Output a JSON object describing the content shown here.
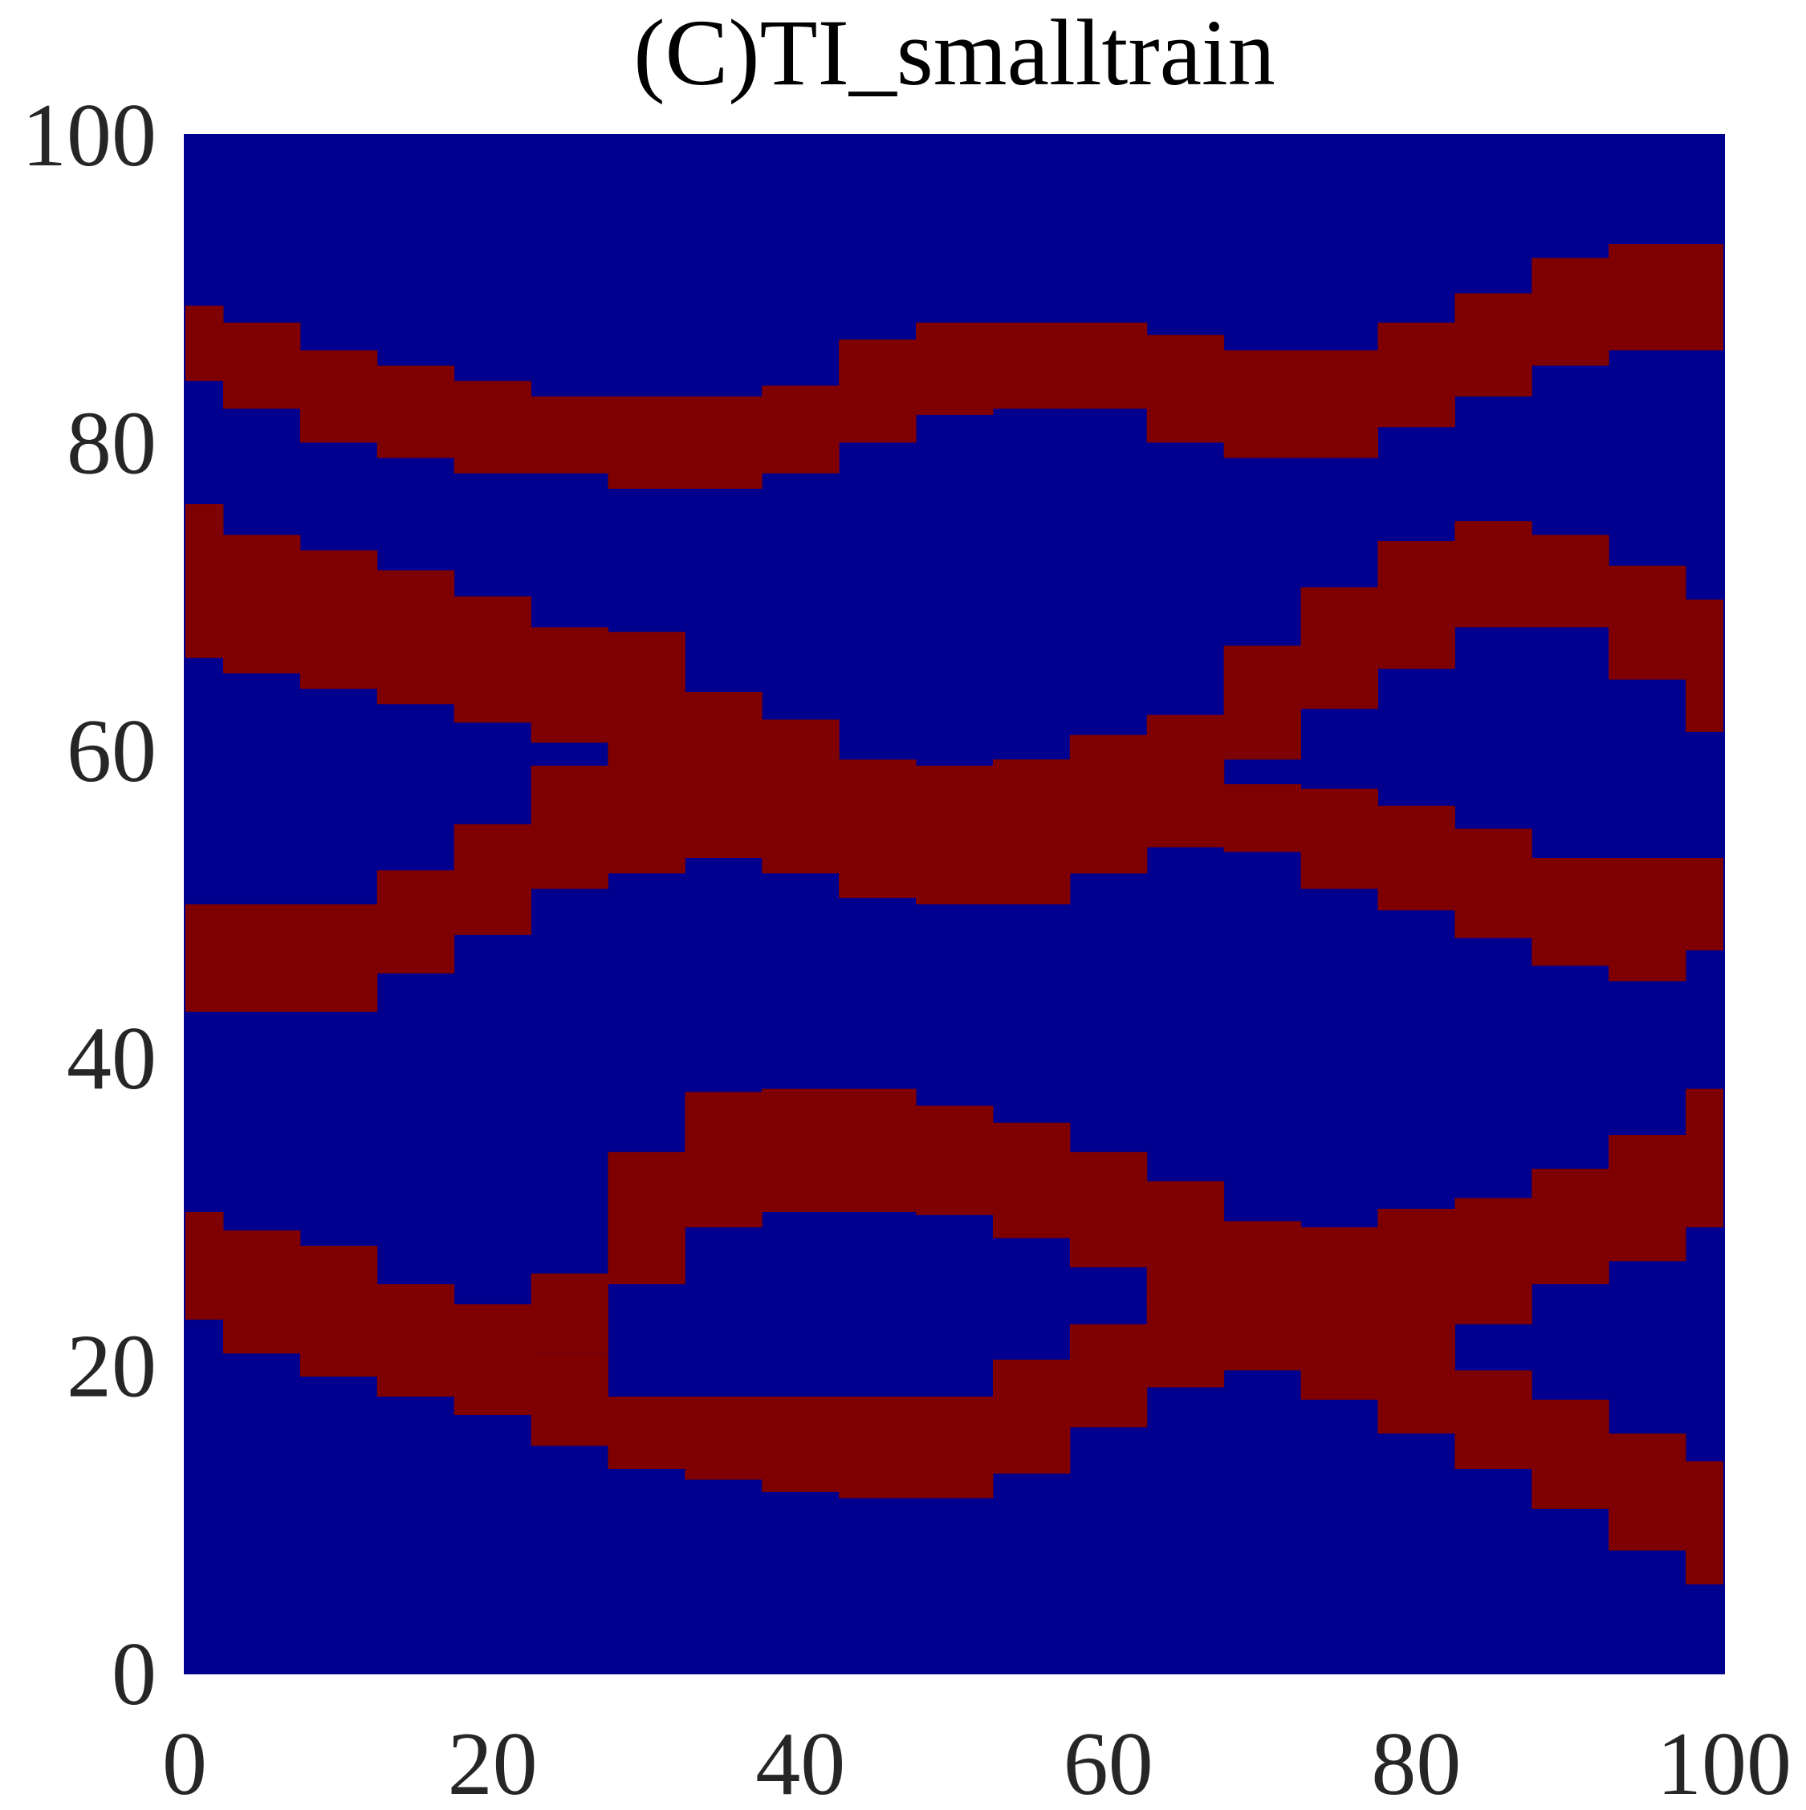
{
  "chart_data": {
    "type": "channels",
    "title": "(C)TI_smalltrain",
    "background": "#00008f",
    "color": "#7f0000",
    "xlim": [
      0,
      100
    ],
    "ylim": [
      0,
      100
    ],
    "xticks": [
      0,
      20,
      40,
      60,
      80,
      100
    ],
    "yticks": [
      0,
      20,
      40,
      60,
      80,
      100
    ],
    "x": [
      0,
      5,
      10,
      15,
      20,
      25,
      30,
      35,
      40,
      45,
      50,
      55,
      60,
      65,
      70,
      75,
      80,
      85,
      90,
      95,
      100
    ],
    "bands": [
      {
        "lower": [
          84,
          82.2,
          80,
          79,
          78,
          78,
          77,
          77,
          78,
          80,
          81.8,
          82.2,
          82.2,
          80,
          79,
          79,
          81,
          83,
          85,
          86,
          86
        ],
        "upper": [
          88.9,
          87.8,
          86,
          85,
          84,
          83,
          83,
          83,
          83.7,
          86.7,
          87.8,
          87.8,
          87.8,
          87,
          86,
          86,
          87.8,
          89.7,
          92,
          92.9,
          92.9
        ]
      },
      {
        "lower": [
          66,
          65,
          64,
          63,
          61.8,
          60.5,
          58,
          56,
          53,
          50.4,
          50,
          50,
          52,
          54.8,
          53.4,
          51,
          49.6,
          47.8,
          46,
          45,
          47
        ],
        "upper": [
          76,
          74,
          73,
          71.7,
          70,
          68,
          67.7,
          63.8,
          62,
          59.4,
          59,
          59.4,
          60.9,
          60,
          57.8,
          57.5,
          56.4,
          54.9,
          53,
          53,
          53
        ]
      },
      {
        "lower": [
          43,
          43,
          43,
          45.5,
          48,
          51,
          52,
          53,
          52,
          51,
          50,
          50.5,
          52,
          53.7,
          59.4,
          62.7,
          65.3,
          68,
          68,
          64.6,
          61.2
        ],
        "upper": [
          50,
          50,
          50,
          52.2,
          55.2,
          59,
          62,
          61,
          60,
          59,
          59,
          59.4,
          61,
          62.3,
          66.8,
          70.6,
          73.6,
          74.9,
          74,
          72,
          69.8
        ]
      },
      {
        "lower": [
          23,
          20.8,
          19.3,
          18,
          16.8,
          14.8,
          13.3,
          12.6,
          11.8,
          11.4,
          11.4,
          13,
          16,
          18.6,
          19.7,
          20.8,
          22,
          22.7,
          25.3,
          26.8,
          29
        ],
        "upper": [
          30,
          28.8,
          27.8,
          25.3,
          24,
          20.8,
          18,
          18,
          18,
          18,
          18,
          20.4,
          22.7,
          24.6,
          26.4,
          29,
          30.2,
          30.9,
          32.8,
          35,
          38
        ]
      },
      {
        "lower": [
          null,
          null,
          null,
          null,
          null,
          20.8,
          25.3,
          29,
          30,
          30,
          29.8,
          28.3,
          26.4,
          23.8,
          20.4,
          17.8,
          15.6,
          13.3,
          10.7,
          8,
          5.8
        ],
        "upper": [
          null,
          null,
          null,
          null,
          null,
          26,
          33.9,
          37.8,
          38,
          38,
          36.9,
          35.8,
          33.9,
          32,
          29.4,
          27.5,
          23.4,
          19.7,
          17.8,
          15.6,
          13.8
        ]
      }
    ]
  }
}
